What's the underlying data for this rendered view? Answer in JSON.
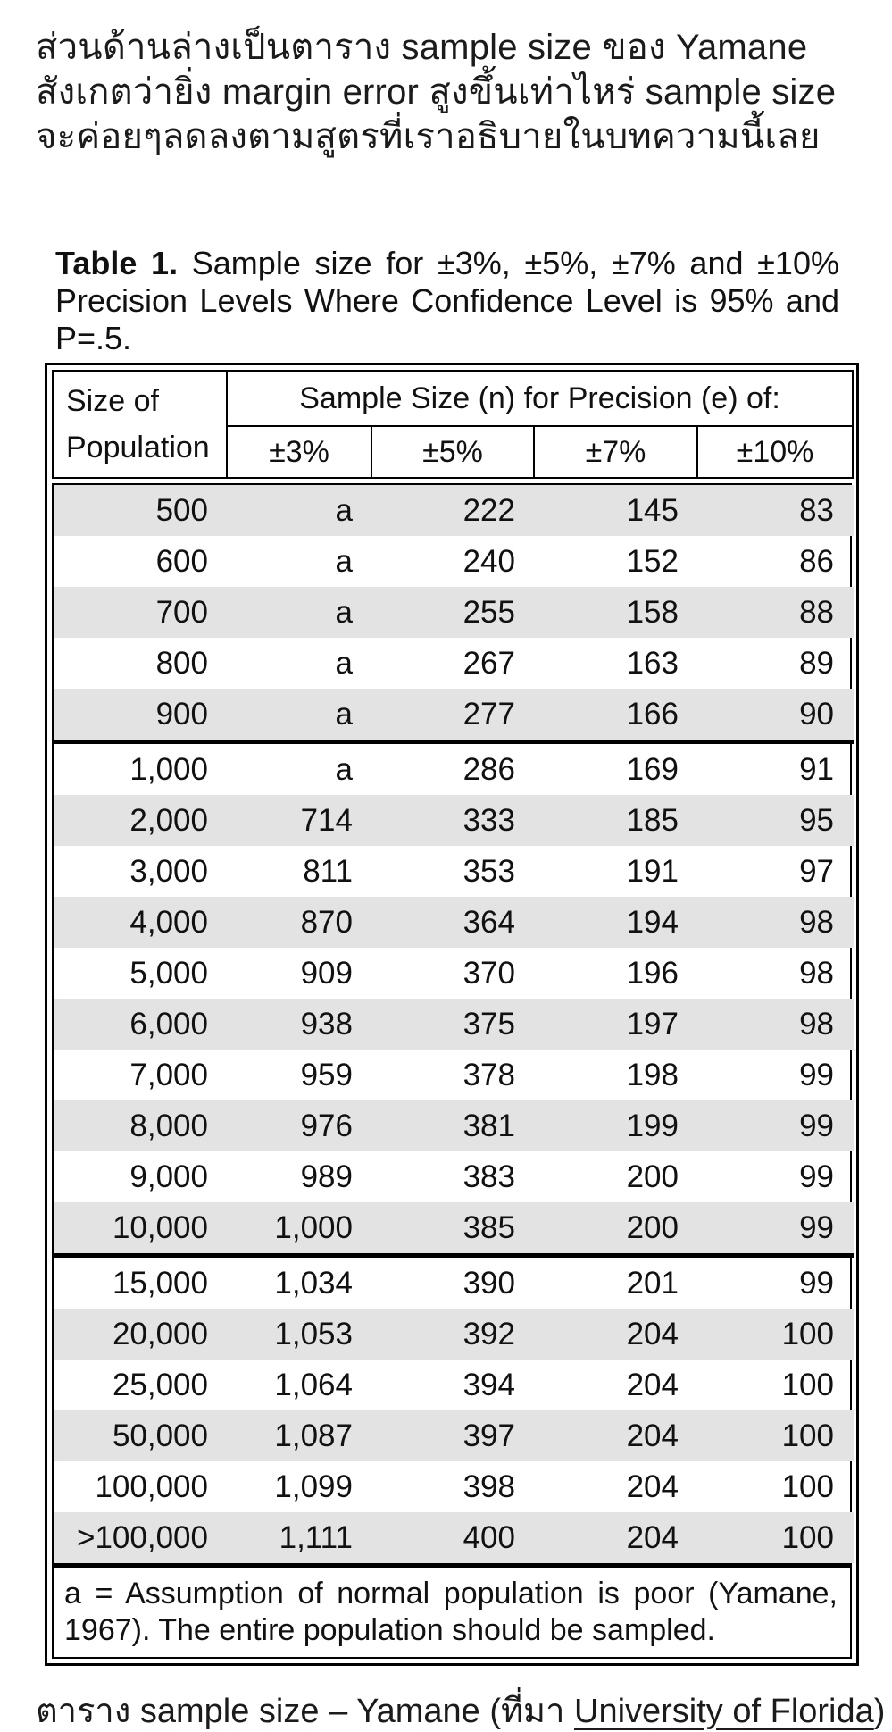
{
  "intro_paragraph": {
    "lines": [
      "ส่วนด้านล่างเป็นตาราง sample size ของ Yamane",
      "สังเกตว่ายิ่ง margin error สูงขึ้นเท่าไหร่ sample size",
      "จะค่อยๆลดลงตามสูตรที่เราอธิบายในบทความนี้เลย"
    ]
  },
  "table": {
    "title": {
      "line1_bold": "Table 1.",
      "line1_rest": " Sample size for ±3%, ±5%, ±7% and ±10%",
      "line2": "Precision Levels Where Confidence Level is 95% and",
      "line3": "P=.5."
    },
    "header": {
      "size_label_line1": "Size of",
      "size_label_line2": "Population",
      "span_label": "Sample Size (n) for Precision (e) of:",
      "precision_columns": [
        "±3%",
        "±5%",
        "±7%",
        "±10%"
      ]
    },
    "columns": [
      "Size of Population",
      "±3%",
      "±5%",
      "±7%",
      "±10%"
    ],
    "groups": [
      [
        [
          "500",
          "a",
          "222",
          "145",
          "83"
        ],
        [
          "600",
          "a",
          "240",
          "152",
          "86"
        ],
        [
          "700",
          "a",
          "255",
          "158",
          "88"
        ],
        [
          "800",
          "a",
          "267",
          "163",
          "89"
        ],
        [
          "900",
          "a",
          "277",
          "166",
          "90"
        ]
      ],
      [
        [
          "1,000",
          "a",
          "286",
          "169",
          "91"
        ],
        [
          "2,000",
          "714",
          "333",
          "185",
          "95"
        ],
        [
          "3,000",
          "811",
          "353",
          "191",
          "97"
        ],
        [
          "4,000",
          "870",
          "364",
          "194",
          "98"
        ],
        [
          "5,000",
          "909",
          "370",
          "196",
          "98"
        ],
        [
          "6,000",
          "938",
          "375",
          "197",
          "98"
        ],
        [
          "7,000",
          "959",
          "378",
          "198",
          "99"
        ],
        [
          "8,000",
          "976",
          "381",
          "199",
          "99"
        ],
        [
          "9,000",
          "989",
          "383",
          "200",
          "99"
        ],
        [
          "10,000",
          "1,000",
          "385",
          "200",
          "99"
        ]
      ],
      [
        [
          "15,000",
          "1,034",
          "390",
          "201",
          "99"
        ],
        [
          "20,000",
          "1,053",
          "392",
          "204",
          "100"
        ],
        [
          "25,000",
          "1,064",
          "394",
          "204",
          "100"
        ],
        [
          "50,000",
          "1,087",
          "397",
          "204",
          "100"
        ],
        [
          "100,000",
          "1,099",
          "398",
          "204",
          "100"
        ],
        [
          ">100,000",
          "1,111",
          "400",
          "204",
          "100"
        ]
      ]
    ],
    "footnote": "a = Assumption of normal population is poor (Yamane, 1967).  The entire population should be sampled.",
    "shade_color": "#e3e3e3",
    "border_color": "#000000"
  },
  "caption": {
    "prefix": "ตาราง sample size – Yamane (ที่มา ",
    "link": "University of Florida",
    "suffix": ")"
  }
}
